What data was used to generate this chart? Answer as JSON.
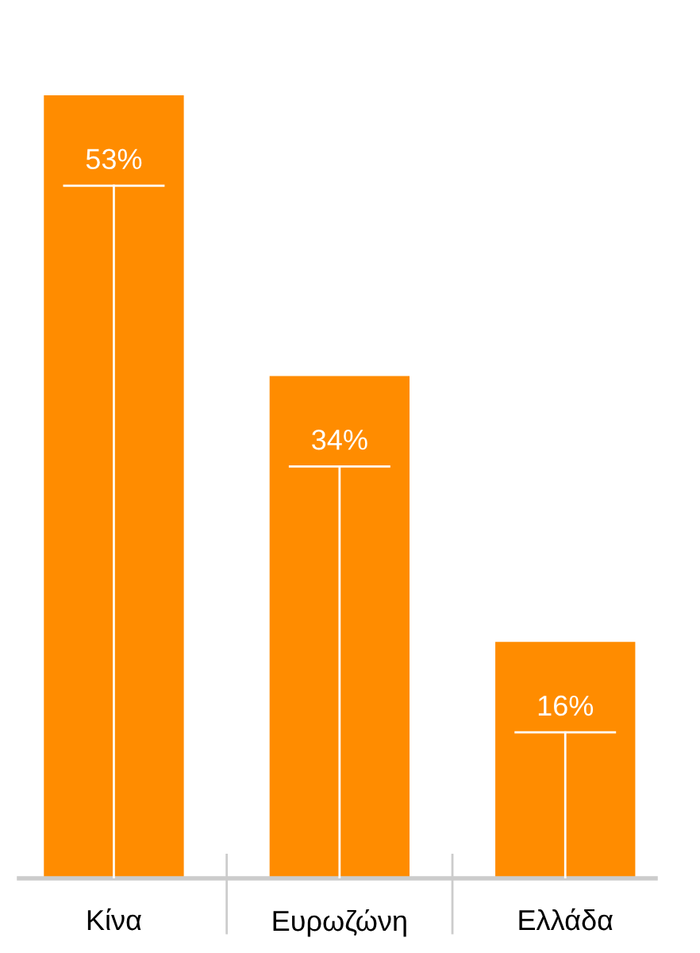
{
  "chart_data": {
    "type": "bar",
    "categories": [
      "Κίνα",
      "Ευρωζώνη",
      "Ελλάδα"
    ],
    "values": [
      53,
      34,
      16
    ],
    "color": "#ff8c00",
    "data_labels": true,
    "value_labels": [
      "53%",
      "34%",
      "16%"
    ]
  }
}
